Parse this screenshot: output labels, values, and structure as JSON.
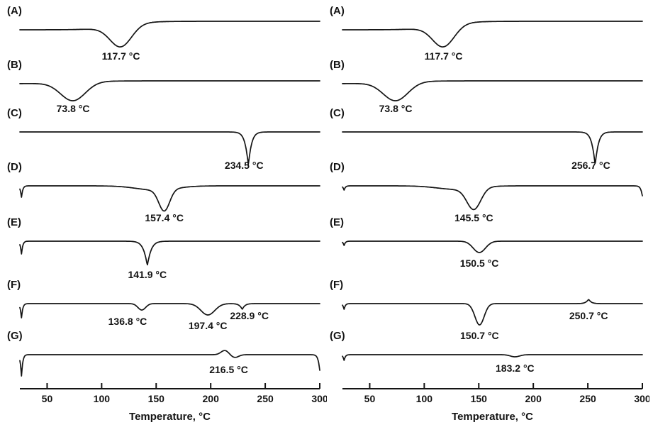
{
  "figure": {
    "background": "#ffffff",
    "line_color": "#141414"
  },
  "chart_data": [
    {
      "type": "line",
      "panel": "left",
      "title": "",
      "xlabel": "Temperature, °C",
      "ylabel": "",
      "x_range": [
        25,
        300
      ],
      "x_ticks": [
        50,
        100,
        150,
        200,
        250,
        300
      ],
      "grid": false,
      "legend": "none",
      "series": [
        {
          "label": "(A)",
          "baseline": 42,
          "step": 12,
          "peaks": [
            {
              "t": 117.7,
              "depth": 30,
              "width": 14
            }
          ],
          "annotations": [
            {
              "t": 117.7,
              "text": "117.7 °C",
              "dy": 42
            }
          ]
        },
        {
          "label": "(B)",
          "baseline": 118,
          "step": 4,
          "peaks": [
            {
              "t": 73.8,
              "depth": 26,
              "width": 16
            }
          ],
          "annotations": [
            {
              "t": 73.8,
              "text": "73.8 °C",
              "dy": 40
            }
          ]
        },
        {
          "label": "(C)",
          "baseline": 186,
          "peaks": [
            {
              "t": 234.5,
              "depth": 46,
              "width": 3,
              "sharp": true
            }
          ],
          "annotations": [
            {
              "t": 234.5,
              "text": "234.5 °C",
              "dx": -6,
              "dy": 52
            }
          ]
        },
        {
          "label": "(D)",
          "baseline": 262,
          "start_spike": 16,
          "peaks": [
            {
              "t": 150,
              "depth": 6,
              "width": 25
            },
            {
              "t": 157.4,
              "depth": 30,
              "width": 7
            }
          ],
          "annotations": [
            {
              "t": 157.4,
              "text": "157.4 °C",
              "dy": 50
            }
          ]
        },
        {
          "label": "(E)",
          "baseline": 340,
          "start_spike": 18,
          "peaks": [
            {
              "t": 141.9,
              "depth": 34,
              "width": 3.5,
              "sharp": true
            }
          ],
          "annotations": [
            {
              "t": 141.9,
              "text": "141.9 °C",
              "dy": 52
            }
          ]
        },
        {
          "label": "(F)",
          "baseline": 428,
          "start_spike": 20,
          "peaks": [
            {
              "t": 136.8,
              "depth": 9,
              "width": 5
            },
            {
              "t": 197.4,
              "depth": 16,
              "width": 9
            },
            {
              "t": 228.9,
              "depth": 8,
              "width": 2.5,
              "sharp": true
            }
          ],
          "annotations": [
            {
              "t": 136.8,
              "text": "136.8 °C",
              "dx": -20,
              "dy": 30
            },
            {
              "t": 197.4,
              "text": "197.4 °C",
              "dy": 36
            },
            {
              "t": 228.9,
              "text": "228.9 °C",
              "dx": 10,
              "dy": 22
            }
          ]
        },
        {
          "label": "(G)",
          "baseline": 500,
          "start_spike": 30,
          "end_drop": 22,
          "peaks": [
            {
              "t": 213,
              "depth": -6,
              "width": 5
            },
            {
              "t": 222,
              "depth": 4,
              "width": 5
            }
          ],
          "annotations": [
            {
              "t": 216.5,
              "text": "216.5 °C",
              "dy": 26
            }
          ]
        }
      ]
    },
    {
      "type": "line",
      "panel": "right",
      "title": "",
      "xlabel": "Temperature, °C",
      "ylabel": "",
      "x_range": [
        25,
        300
      ],
      "x_ticks": [
        50,
        100,
        150,
        200,
        250,
        300
      ],
      "grid": false,
      "legend": "none",
      "series": [
        {
          "label": "(A)",
          "baseline": 42,
          "step": 12,
          "peaks": [
            {
              "t": 117.7,
              "depth": 30,
              "width": 14
            }
          ],
          "annotations": [
            {
              "t": 117.7,
              "text": "117.7 °C",
              "dy": 42
            }
          ]
        },
        {
          "label": "(B)",
          "baseline": 118,
          "step": 4,
          "peaks": [
            {
              "t": 73.8,
              "depth": 26,
              "width": 16
            }
          ],
          "annotations": [
            {
              "t": 73.8,
              "text": "73.8 °C",
              "dy": 40
            }
          ]
        },
        {
          "label": "(C)",
          "baseline": 186,
          "peaks": [
            {
              "t": 256.7,
              "depth": 46,
              "width": 3,
              "sharp": true
            }
          ],
          "annotations": [
            {
              "t": 256.7,
              "text": "256.7 °C",
              "dx": -6,
              "dy": 52
            }
          ]
        },
        {
          "label": "(D)",
          "baseline": 262,
          "start_spike": 6,
          "end_drop": 14,
          "peaks": [
            {
              "t": 130,
              "depth": 5,
              "width": 25
            },
            {
              "t": 145.5,
              "depth": 30,
              "width": 9
            }
          ],
          "annotations": [
            {
              "t": 145.5,
              "text": "145.5 °C",
              "dy": 50
            }
          ]
        },
        {
          "label": "(E)",
          "baseline": 340,
          "start_spike": 6,
          "peaks": [
            {
              "t": 150.5,
              "depth": 16,
              "width": 8
            }
          ],
          "annotations": [
            {
              "t": 150.5,
              "text": "150.5 °C",
              "dy": 36
            }
          ]
        },
        {
          "label": "(F)",
          "baseline": 428,
          "start_spike": 8,
          "peaks": [
            {
              "t": 150.7,
              "depth": 30,
              "width": 6
            },
            {
              "t": 250.7,
              "depth": -6,
              "width": 2.5,
              "sharp": true
            }
          ],
          "annotations": [
            {
              "t": 150.7,
              "text": "150.7 °C",
              "dy": 50
            },
            {
              "t": 250.7,
              "text": "250.7 °C",
              "dy": 22
            }
          ]
        },
        {
          "label": "(G)",
          "baseline": 500,
          "start_spike": 8,
          "peaks": [
            {
              "t": 183.2,
              "depth": 3,
              "width": 6
            }
          ],
          "annotations": [
            {
              "t": 183.2,
              "text": "183.2 °C",
              "dy": 24
            }
          ]
        }
      ]
    }
  ]
}
